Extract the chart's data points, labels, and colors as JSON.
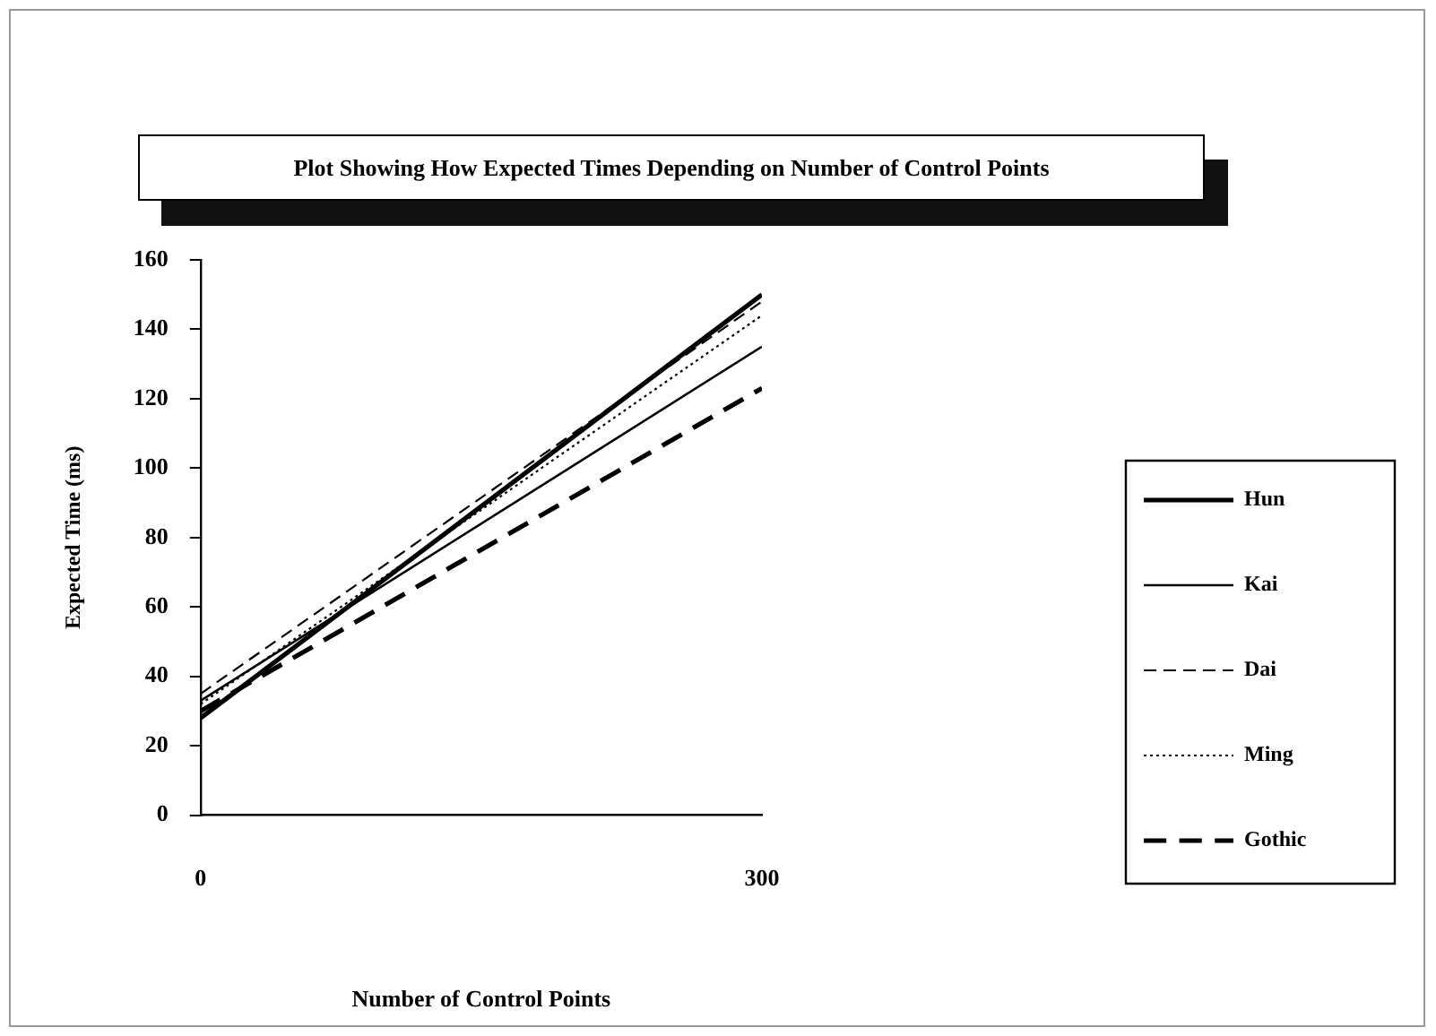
{
  "chart_data": {
    "type": "line",
    "title": "Plot Showing How Expected Times Depending on Number of Control Points",
    "xlabel": "Number of Control Points",
    "ylabel": "Expected Time (ms)",
    "x": [
      0,
      300
    ],
    "xlim": [
      0,
      300
    ],
    "xticks": [
      0,
      300
    ],
    "ylim": [
      0,
      160
    ],
    "yticks": [
      0,
      20,
      40,
      60,
      80,
      100,
      120,
      140,
      160
    ],
    "grid": false,
    "legend": "right",
    "marker": "none",
    "series": [
      {
        "name": "Hun",
        "color": "#000000",
        "values": [
          28,
          150
        ],
        "line_style": "solid"
      },
      {
        "name": "Kai",
        "color": "#000000",
        "values": [
          33,
          135
        ],
        "line_style": "solid"
      },
      {
        "name": "Dai",
        "color": "#000000",
        "values": [
          35,
          148
        ],
        "line_style": "dashed"
      },
      {
        "name": "Ming",
        "color": "#000000",
        "values": [
          32,
          144
        ],
        "line_style": "dotted"
      },
      {
        "name": "Gothic",
        "color": "#000000",
        "values": [
          30,
          123
        ],
        "line_style": "dashed"
      }
    ]
  }
}
